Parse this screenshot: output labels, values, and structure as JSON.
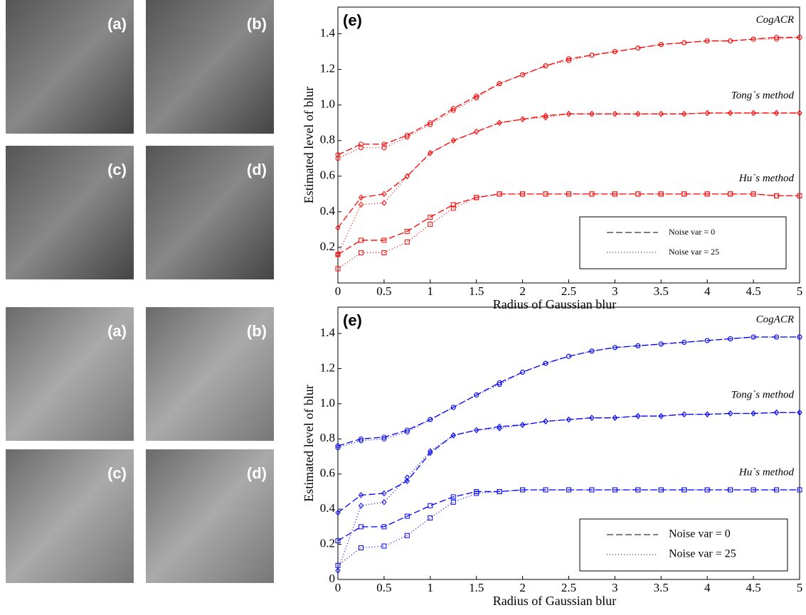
{
  "image_groups": [
    {
      "panels": [
        "(a)",
        "(b)",
        "(c)",
        "(d)"
      ]
    },
    {
      "panels": [
        "(a)",
        "(b)",
        "(c)",
        "(d)"
      ]
    }
  ],
  "chart_data": [
    {
      "type": "line",
      "title": "(e)",
      "xlabel": "Radius of Gaussian blur",
      "ylabel": "Estimated level of blur",
      "color": "#ff0000",
      "x": [
        0,
        0.25,
        0.5,
        0.75,
        1,
        1.25,
        1.5,
        1.75,
        2,
        2.25,
        2.5,
        2.75,
        3,
        3.25,
        3.5,
        3.75,
        4,
        4.25,
        4.5,
        4.75,
        5
      ],
      "xlim": [
        0,
        5
      ],
      "ylim": [
        0,
        1.55
      ],
      "xticks": [
        0,
        0.5,
        1,
        1.5,
        2,
        2.5,
        3,
        3.5,
        4,
        4.5,
        5
      ],
      "yticks": [
        0.2,
        0.4,
        0.6,
        0.8,
        {
          "value": 1,
          "label": "1.0"
        },
        1.2,
        1.4
      ],
      "legend": [
        {
          "label": "Noise var = 0",
          "dash": "9 4"
        },
        {
          "label": "Noise var = 25",
          "dash": "1 3"
        }
      ],
      "groups": [
        {
          "name": "CogACR",
          "marker": "circle",
          "lines": [
            {
              "style": 0,
              "values": [
                0.72,
                0.78,
                0.78,
                0.83,
                0.9,
                0.98,
                1.05,
                1.12,
                1.17,
                1.22,
                1.26,
                1.28,
                1.3,
                1.32,
                1.34,
                1.35,
                1.36,
                1.36,
                1.37,
                1.38,
                1.38
              ]
            },
            {
              "style": 1,
              "values": [
                0.7,
                0.76,
                0.76,
                0.82,
                0.89,
                0.97,
                1.04,
                1.12,
                1.17,
                1.22,
                1.25,
                1.28,
                1.3,
                1.32,
                1.34,
                1.35,
                1.36,
                1.36,
                1.37,
                1.37,
                1.38
              ]
            }
          ]
        },
        {
          "name": "Tong`s method",
          "marker": "diamond",
          "lines": [
            {
              "style": 0,
              "values": [
                0.31,
                0.48,
                0.5,
                0.6,
                0.73,
                0.8,
                0.85,
                0.9,
                0.92,
                0.94,
                0.95,
                0.95,
                0.95,
                0.95,
                0.95,
                0.95,
                0.955,
                0.955,
                0.955,
                0.955,
                0.955
              ]
            },
            {
              "style": 1,
              "values": [
                0.16,
                0.44,
                0.45,
                0.6,
                0.73,
                0.8,
                0.85,
                0.9,
                0.92,
                0.93,
                0.95,
                0.95,
                0.95,
                0.95,
                0.95,
                0.95,
                0.955,
                0.955,
                0.955,
                0.955,
                0.955
              ]
            }
          ]
        },
        {
          "name": "Hu`s method",
          "marker": "square",
          "lines": [
            {
              "style": 0,
              "values": [
                0.16,
                0.24,
                0.24,
                0.29,
                0.37,
                0.44,
                0.48,
                0.5,
                0.5,
                0.5,
                0.5,
                0.5,
                0.5,
                0.5,
                0.5,
                0.5,
                0.5,
                0.5,
                0.5,
                0.49,
                0.49
              ]
            },
            {
              "style": 1,
              "values": [
                0.08,
                0.17,
                0.17,
                0.23,
                0.33,
                0.42,
                0.48,
                0.5,
                0.5,
                0.5,
                0.5,
                0.5,
                0.5,
                0.5,
                0.5,
                0.5,
                0.5,
                0.5,
                0.5,
                0.49,
                0.49
              ]
            }
          ]
        }
      ]
    },
    {
      "type": "line",
      "title": "(e)",
      "xlabel": "Radius of Gaussian blur",
      "ylabel": "Estimated level of blur",
      "color": "#0000ff",
      "x": [
        0,
        0.25,
        0.5,
        0.75,
        1,
        1.25,
        1.5,
        1.75,
        2,
        2.25,
        2.5,
        2.75,
        3,
        3.25,
        3.5,
        3.75,
        4,
        4.25,
        4.5,
        4.75,
        5
      ],
      "xlim": [
        0,
        5
      ],
      "ylim": [
        0,
        1.55
      ],
      "xticks": [
        0,
        0.5,
        1,
        1.5,
        2,
        2.5,
        3,
        3.5,
        4,
        4.5,
        5
      ],
      "yticks": [
        0,
        0.2,
        0.4,
        0.6,
        0.8,
        {
          "value": 1,
          "label": "1.0"
        },
        1.2,
        1.4
      ],
      "legend": [
        {
          "label": "Noise var = 0",
          "dash": "9 4"
        },
        {
          "label": "Noise var = 25",
          "dash": "1 3"
        }
      ],
      "groups": [
        {
          "name": "CogACR",
          "marker": "circle",
          "lines": [
            {
              "style": 0,
              "values": [
                0.76,
                0.8,
                0.81,
                0.85,
                0.91,
                0.98,
                1.05,
                1.12,
                1.18,
                1.23,
                1.27,
                1.3,
                1.32,
                1.33,
                1.34,
                1.35,
                1.36,
                1.37,
                1.38,
                1.38,
                1.38
              ]
            },
            {
              "style": 1,
              "values": [
                0.75,
                0.79,
                0.8,
                0.84,
                0.91,
                0.98,
                1.05,
                1.11,
                1.18,
                1.23,
                1.27,
                1.3,
                1.32,
                1.33,
                1.34,
                1.35,
                1.36,
                1.37,
                1.38,
                1.38,
                1.38
              ]
            }
          ]
        },
        {
          "name": "Tong`s method",
          "marker": "diamond",
          "lines": [
            {
              "style": 0,
              "values": [
                0.38,
                0.48,
                0.49,
                0.56,
                0.72,
                0.82,
                0.85,
                0.87,
                0.88,
                0.9,
                0.91,
                0.92,
                0.92,
                0.93,
                0.93,
                0.94,
                0.94,
                0.945,
                0.945,
                0.95,
                0.95
              ]
            },
            {
              "style": 1,
              "values": [
                0.05,
                0.42,
                0.44,
                0.58,
                0.73,
                0.82,
                0.85,
                0.86,
                0.88,
                0.9,
                0.91,
                0.92,
                0.92,
                0.93,
                0.93,
                0.94,
                0.94,
                0.945,
                0.945,
                0.95,
                0.95
              ]
            }
          ]
        },
        {
          "name": "Hu`s method",
          "marker": "square",
          "lines": [
            {
              "style": 0,
              "values": [
                0.22,
                0.3,
                0.3,
                0.36,
                0.42,
                0.47,
                0.5,
                0.5,
                0.51,
                0.51,
                0.51,
                0.51,
                0.51,
                0.51,
                0.51,
                0.51,
                0.51,
                0.51,
                0.51,
                0.51,
                0.51
              ]
            },
            {
              "style": 1,
              "values": [
                0.08,
                0.18,
                0.19,
                0.25,
                0.35,
                0.44,
                0.49,
                0.5,
                0.51,
                0.51,
                0.51,
                0.51,
                0.51,
                0.51,
                0.51,
                0.51,
                0.51,
                0.51,
                0.51,
                0.51,
                0.51
              ]
            }
          ]
        }
      ]
    }
  ]
}
